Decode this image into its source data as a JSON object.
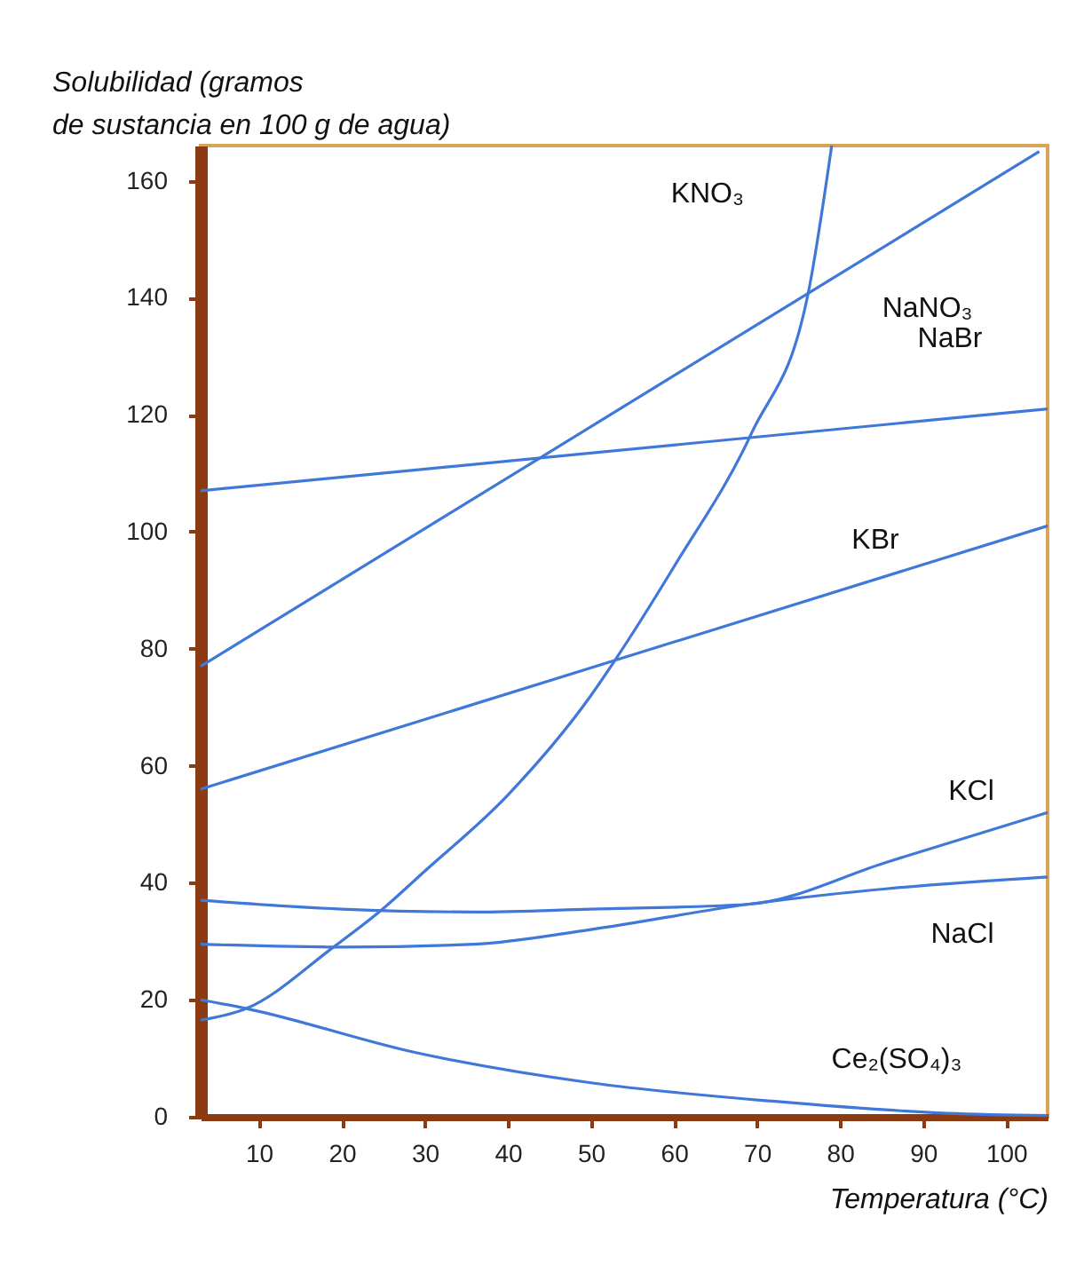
{
  "chart_data": {
    "type": "line",
    "ylabel": "Solubilidad (gramos de sustancia en 100 g de agua)",
    "xlabel": "Temperatura (°C)",
    "xlim": [
      3,
      105
    ],
    "xticks": [
      10,
      20,
      30,
      40,
      50,
      60,
      70,
      80,
      90,
      100
    ],
    "ylim": [
      0,
      166
    ],
    "yticks": [
      0,
      20,
      40,
      60,
      80,
      100,
      120,
      140,
      160
    ],
    "grid": false,
    "legend": false,
    "marker": "none",
    "line_style": "solid",
    "series": [
      {
        "name": "KNO₃",
        "color": "#3f78d8",
        "x": [
          3,
          8.5,
          19,
          24.5,
          30,
          40,
          50,
          52.7,
          60,
          69.4,
          76.2,
          79
        ],
        "values": [
          16.5,
          18.5,
          29,
          35,
          42,
          55,
          72,
          77.6,
          94,
          117,
          141,
          166
        ]
      },
      {
        "name": "NaNO₃",
        "color": "#3f78d8",
        "x": [
          3,
          104
        ],
        "values": [
          77,
          165
        ]
      },
      {
        "name": "NaBr",
        "color": "#3f78d8",
        "x": [
          3,
          105
        ],
        "values": [
          107,
          121
        ]
      },
      {
        "name": "KBr",
        "color": "#3f78d8",
        "x": [
          3,
          105
        ],
        "values": [
          56,
          101
        ]
      },
      {
        "name": "KCl",
        "color": "#3f78d8",
        "x": [
          3,
          20,
          36,
          50,
          68.8,
          85.8,
          105
        ],
        "values": [
          37,
          35.5,
          35,
          35.5,
          36.3,
          43.6,
          52
        ]
      },
      {
        "name": "NaCl",
        "color": "#3f78d8",
        "x": [
          3,
          20,
          36,
          50,
          68.8,
          85.8,
          105
        ],
        "values": [
          29.5,
          29,
          29.5,
          32,
          36.3,
          39,
          41
        ]
      },
      {
        "name": "Ce₂(SO₄)₃",
        "color": "#3f78d8",
        "x": [
          3,
          8.5,
          28.8,
          50,
          71.5,
          93,
          105
        ],
        "values": [
          20,
          18.5,
          11,
          5.8,
          2.7,
          0.6,
          0.2
        ]
      }
    ]
  }
}
